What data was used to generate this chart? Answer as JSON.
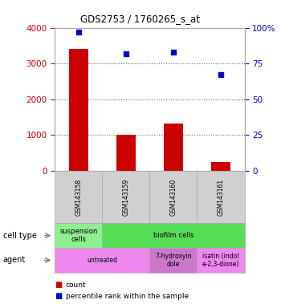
{
  "title": "GDS2753 / 1760265_s_at",
  "samples": [
    "GSM143158",
    "GSM143159",
    "GSM143160",
    "GSM143161"
  ],
  "counts": [
    3400,
    1020,
    1320,
    250
  ],
  "percentiles": [
    97,
    82,
    83,
    67
  ],
  "ylim_left": [
    0,
    4000
  ],
  "ylim_right": [
    0,
    100
  ],
  "yticks_left": [
    0,
    1000,
    2000,
    3000,
    4000
  ],
  "yticks_right": [
    0,
    25,
    50,
    75,
    100
  ],
  "ytick_labels_right": [
    "0",
    "25",
    "50",
    "75",
    "100%"
  ],
  "bar_color": "#cc0000",
  "dot_color": "#0000cc",
  "cell_type_cells": [
    {
      "text": "suspension\ncells",
      "color": "#90ee90",
      "colspan": 1
    },
    {
      "text": "biofilm cells",
      "color": "#55dd55",
      "colspan": 3
    }
  ],
  "agent_cells": [
    {
      "text": "untreated",
      "color": "#ee88ee",
      "colspan": 2
    },
    {
      "text": "7-hydroxyin\ndole",
      "color": "#cc77cc",
      "colspan": 1
    },
    {
      "text": "isatin (indol\ne-2,3-dione)",
      "color": "#ee88ee",
      "colspan": 1
    }
  ],
  "left_axis_color": "#cc0000",
  "right_axis_color": "#0000cc"
}
